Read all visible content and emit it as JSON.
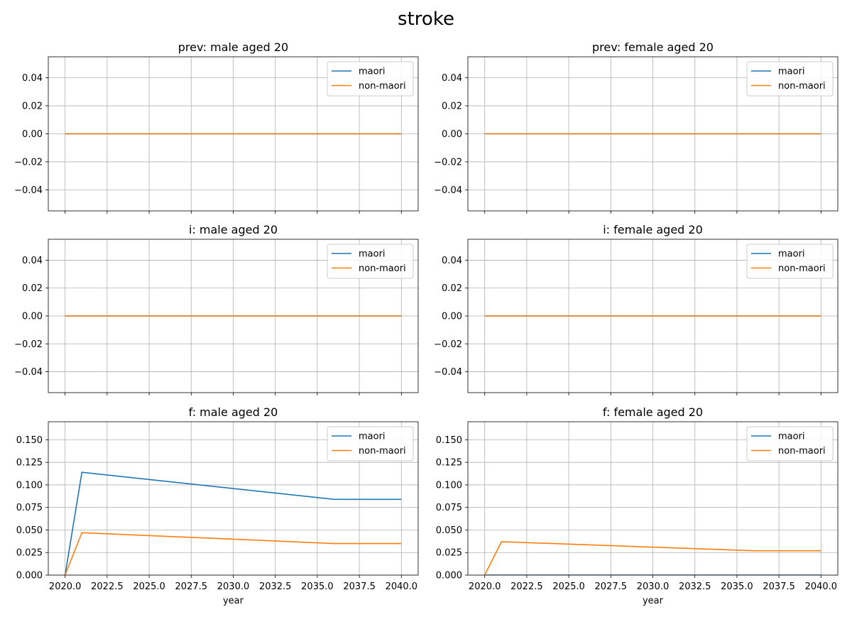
{
  "figure": {
    "title": "stroke"
  },
  "colors": {
    "maori": "#1f77b4",
    "non_maori": "#ff7f0e",
    "grid": "#b0b0b0"
  },
  "chart_data": [
    {
      "type": "line",
      "title": "prev: male aged 20",
      "xlabel": "",
      "ylabel": "",
      "xlim": [
        2019.0,
        2041.0
      ],
      "ylim": [
        -0.055,
        0.055
      ],
      "xticks": [
        2020.0,
        2022.5,
        2025.0,
        2027.5,
        2030.0,
        2032.5,
        2035.0,
        2037.5,
        2040.0
      ],
      "xtick_labels": [],
      "yticks": [
        -0.04,
        -0.02,
        0.0,
        0.02,
        0.04
      ],
      "ytick_labels": [
        "−0.04",
        "−0.02",
        "0.00",
        "0.02",
        "0.04"
      ],
      "grid": true,
      "legend": "top-right",
      "x": [
        2020,
        2021,
        2036,
        2040
      ],
      "series": [
        {
          "name": "maori",
          "values": [
            0,
            0,
            0,
            0
          ]
        },
        {
          "name": "non-maori",
          "values": [
            0,
            0,
            0,
            0
          ]
        }
      ]
    },
    {
      "type": "line",
      "title": "prev: female aged 20",
      "xlabel": "",
      "ylabel": "",
      "xlim": [
        2019.0,
        2041.0
      ],
      "ylim": [
        -0.055,
        0.055
      ],
      "xticks": [
        2020.0,
        2022.5,
        2025.0,
        2027.5,
        2030.0,
        2032.5,
        2035.0,
        2037.5,
        2040.0
      ],
      "xtick_labels": [],
      "yticks": [
        -0.04,
        -0.02,
        0.0,
        0.02,
        0.04
      ],
      "ytick_labels": [
        "−0.04",
        "−0.02",
        "0.00",
        "0.02",
        "0.04"
      ],
      "grid": true,
      "legend": "top-right",
      "x": [
        2020,
        2021,
        2036,
        2040
      ],
      "series": [
        {
          "name": "maori",
          "values": [
            0,
            0,
            0,
            0
          ]
        },
        {
          "name": "non-maori",
          "values": [
            0,
            0,
            0,
            0
          ]
        }
      ]
    },
    {
      "type": "line",
      "title": "i: male aged 20",
      "xlabel": "",
      "ylabel": "",
      "xlim": [
        2019.0,
        2041.0
      ],
      "ylim": [
        -0.055,
        0.055
      ],
      "xticks": [
        2020.0,
        2022.5,
        2025.0,
        2027.5,
        2030.0,
        2032.5,
        2035.0,
        2037.5,
        2040.0
      ],
      "xtick_labels": [],
      "yticks": [
        -0.04,
        -0.02,
        0.0,
        0.02,
        0.04
      ],
      "ytick_labels": [
        "−0.04",
        "−0.02",
        "0.00",
        "0.02",
        "0.04"
      ],
      "grid": true,
      "legend": "top-right",
      "x": [
        2020,
        2021,
        2036,
        2040
      ],
      "series": [
        {
          "name": "maori",
          "values": [
            0,
            0,
            0,
            0
          ]
        },
        {
          "name": "non-maori",
          "values": [
            0,
            0,
            0,
            0
          ]
        }
      ]
    },
    {
      "type": "line",
      "title": "i: female aged 20",
      "xlabel": "",
      "ylabel": "",
      "xlim": [
        2019.0,
        2041.0
      ],
      "ylim": [
        -0.055,
        0.055
      ],
      "xticks": [
        2020.0,
        2022.5,
        2025.0,
        2027.5,
        2030.0,
        2032.5,
        2035.0,
        2037.5,
        2040.0
      ],
      "xtick_labels": [],
      "yticks": [
        -0.04,
        -0.02,
        0.0,
        0.02,
        0.04
      ],
      "ytick_labels": [
        "−0.04",
        "−0.02",
        "0.00",
        "0.02",
        "0.04"
      ],
      "grid": true,
      "legend": "top-right",
      "x": [
        2020,
        2021,
        2036,
        2040
      ],
      "series": [
        {
          "name": "maori",
          "values": [
            0,
            0,
            0,
            0
          ]
        },
        {
          "name": "non-maori",
          "values": [
            0,
            0,
            0,
            0
          ]
        }
      ]
    },
    {
      "type": "line",
      "title": "f: male aged 20",
      "xlabel": "year",
      "ylabel": "",
      "xlim": [
        2019.0,
        2041.0
      ],
      "ylim": [
        0.0,
        0.17
      ],
      "xticks": [
        2020.0,
        2022.5,
        2025.0,
        2027.5,
        2030.0,
        2032.5,
        2035.0,
        2037.5,
        2040.0
      ],
      "xtick_labels": [
        "2020.0",
        "2022.5",
        "2025.0",
        "2027.5",
        "2030.0",
        "2032.5",
        "2035.0",
        "2037.5",
        "2040.0"
      ],
      "yticks": [
        0.0,
        0.025,
        0.05,
        0.075,
        0.1,
        0.125,
        0.15
      ],
      "ytick_labels": [
        "0.000",
        "0.025",
        "0.050",
        "0.075",
        "0.100",
        "0.125",
        "0.150"
      ],
      "grid": true,
      "legend": "top-right",
      "x": [
        2020,
        2021,
        2036,
        2040
      ],
      "series": [
        {
          "name": "maori",
          "values": [
            0.0,
            0.114,
            0.084,
            0.084
          ]
        },
        {
          "name": "non-maori",
          "values": [
            0.0,
            0.047,
            0.035,
            0.035
          ]
        }
      ]
    },
    {
      "type": "line",
      "title": "f: female aged 20",
      "xlabel": "year",
      "ylabel": "",
      "xlim": [
        2019.0,
        2041.0
      ],
      "ylim": [
        0.0,
        0.17
      ],
      "xticks": [
        2020.0,
        2022.5,
        2025.0,
        2027.5,
        2030.0,
        2032.5,
        2035.0,
        2037.5,
        2040.0
      ],
      "xtick_labels": [
        "2020.0",
        "2022.5",
        "2025.0",
        "2027.5",
        "2030.0",
        "2032.5",
        "2035.0",
        "2037.5",
        "2040.0"
      ],
      "yticks": [
        0.0,
        0.025,
        0.05,
        0.075,
        0.1,
        0.125,
        0.15
      ],
      "ytick_labels": [
        "0.000",
        "0.025",
        "0.050",
        "0.075",
        "0.100",
        "0.125",
        "0.150"
      ],
      "grid": true,
      "legend": "top-right",
      "x": [
        2020,
        2021,
        2036,
        2040
      ],
      "series": [
        {
          "name": "maori",
          "values": [
            0.0,
            0.0,
            0.0,
            0.0
          ]
        },
        {
          "name": "non-maori",
          "values": [
            0.0,
            0.037,
            0.027,
            0.027
          ]
        }
      ]
    }
  ]
}
